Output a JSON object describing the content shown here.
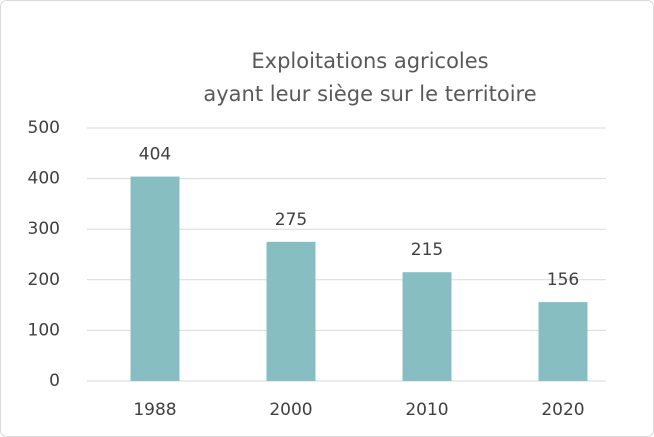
{
  "chart_data": {
    "type": "bar",
    "title": [
      "Exploitations agricoles",
      "ayant leur siège sur le territoire"
    ],
    "categories": [
      "1988",
      "2000",
      "2010",
      "2020"
    ],
    "values": [
      404,
      275,
      215,
      156
    ],
    "color": "#86bec2",
    "ylim": [
      0,
      500
    ],
    "yticks": [
      0,
      100,
      200,
      300,
      400,
      500
    ],
    "grid": true
  }
}
